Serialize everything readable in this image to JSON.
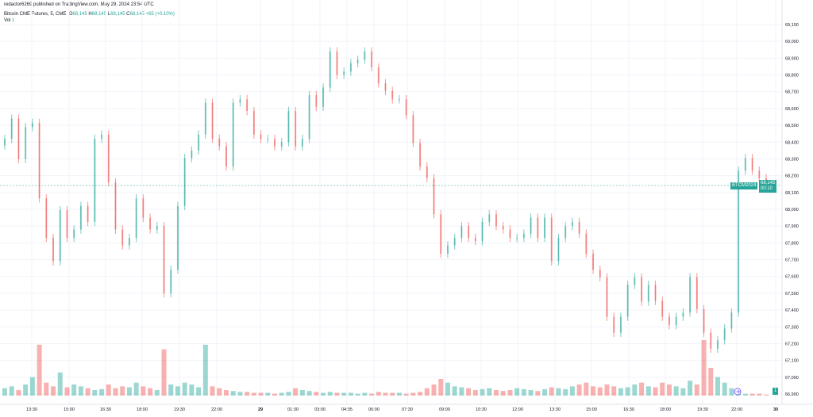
{
  "header": {
    "published": "redactor6269 published on TradingView.com, May 29, 2024 23:54 UTC",
    "symbol": "Bitcoin CME Futures, 5, CME",
    "o_label": "O",
    "o_value": "68,145",
    "h_label": "H",
    "h_value": "68,145",
    "l_label": "L",
    "l_value": "68,145",
    "c_label": "C",
    "c_value": "68,145",
    "change": "+65 (+0.10%)",
    "vol_label": "Vol",
    "vol_value": "1"
  },
  "last_price": {
    "symbol_tag": "BTCM2024",
    "price": "68,145",
    "countdown": "00:10",
    "volume_tag": "1"
  },
  "colors": {
    "up": "#26a69a",
    "down": "#ef5350",
    "grid": "#f0f3fa",
    "event_marker": "#7b61ff"
  },
  "chart_data": {
    "type": "candlestick",
    "title": "",
    "ylim": [
      66900,
      69100
    ],
    "yticks": [
      "69,100",
      "69,000",
      "68,900",
      "68,800",
      "68,700",
      "68,600",
      "68,500",
      "68,400",
      "68,300",
      "68,200",
      "68,100",
      "68,000",
      "67,900",
      "67,800",
      "67,700",
      "67,600",
      "67,500",
      "67,400",
      "67,300",
      "67,200",
      "67,100",
      "67,000",
      "66,900"
    ],
    "xticks": [
      "13:30",
      "15:00",
      "16:30",
      "18:00",
      "19:30",
      "22:00",
      "29",
      "01:30",
      "03:00",
      "04:35",
      "06:00",
      "07:30",
      "09:00",
      "10:30",
      "12:00",
      "13:30",
      "15:00",
      "16:30",
      "18:00",
      "19:30",
      "22:00",
      "30"
    ],
    "close": [
      68420,
      68540,
      68300,
      68490,
      68515,
      68065,
      67830,
      67690,
      67995,
      67830,
      67880,
      68020,
      67925,
      68420,
      68445,
      68160,
      67880,
      67785,
      67830,
      68065,
      67950,
      67880,
      67900,
      67500,
      67640,
      68020,
      68305,
      68350,
      68445,
      68635,
      68420,
      68375,
      68255,
      68635,
      68655,
      68585,
      68445,
      68420,
      68420,
      68375,
      68400,
      68585,
      68375,
      68420,
      68680,
      68610,
      68725,
      68940,
      68800,
      68820,
      68870,
      68890,
      68940,
      68845,
      68750,
      68705,
      68655,
      68655,
      68560,
      68395,
      68255,
      68185,
      67970,
      67735,
      67785,
      67830,
      67900,
      67830,
      67810,
      67925,
      67970,
      67900,
      67880,
      67830,
      67830,
      67855,
      67950,
      67830,
      67950,
      67690,
      67830,
      67900,
      67925,
      67855,
      67735,
      67640,
      67595,
      67360,
      67265,
      67360,
      67550,
      67595,
      67450,
      67550,
      67455,
      67360,
      67310,
      67360,
      67385,
      67595,
      67405,
      67265,
      67170,
      67220,
      67290,
      67385,
      68230,
      68305,
      68230,
      68185,
      68145
    ],
    "volume": [
      8,
      10,
      6,
      12,
      20,
      55,
      14,
      10,
      25,
      9,
      12,
      10,
      8,
      6,
      7,
      12,
      8,
      10,
      9,
      14,
      10,
      8,
      6,
      50,
      12,
      10,
      14,
      12,
      9,
      55,
      10,
      8,
      6,
      5,
      4,
      4,
      3,
      3,
      3,
      2,
      3,
      4,
      8,
      6,
      5,
      4,
      3,
      4,
      3,
      3,
      3,
      2,
      3,
      2,
      4,
      3,
      3,
      3,
      2,
      3,
      4,
      8,
      12,
      18,
      14,
      10,
      9,
      8,
      6,
      7,
      8,
      6,
      5,
      6,
      8,
      7,
      6,
      5,
      7,
      9,
      8,
      7,
      10,
      12,
      14,
      10,
      9,
      12,
      10,
      8,
      9,
      12,
      14,
      10,
      9,
      14,
      12,
      10,
      8,
      16,
      12,
      60,
      30,
      20,
      14,
      8,
      3,
      2,
      2,
      2,
      1
    ]
  }
}
